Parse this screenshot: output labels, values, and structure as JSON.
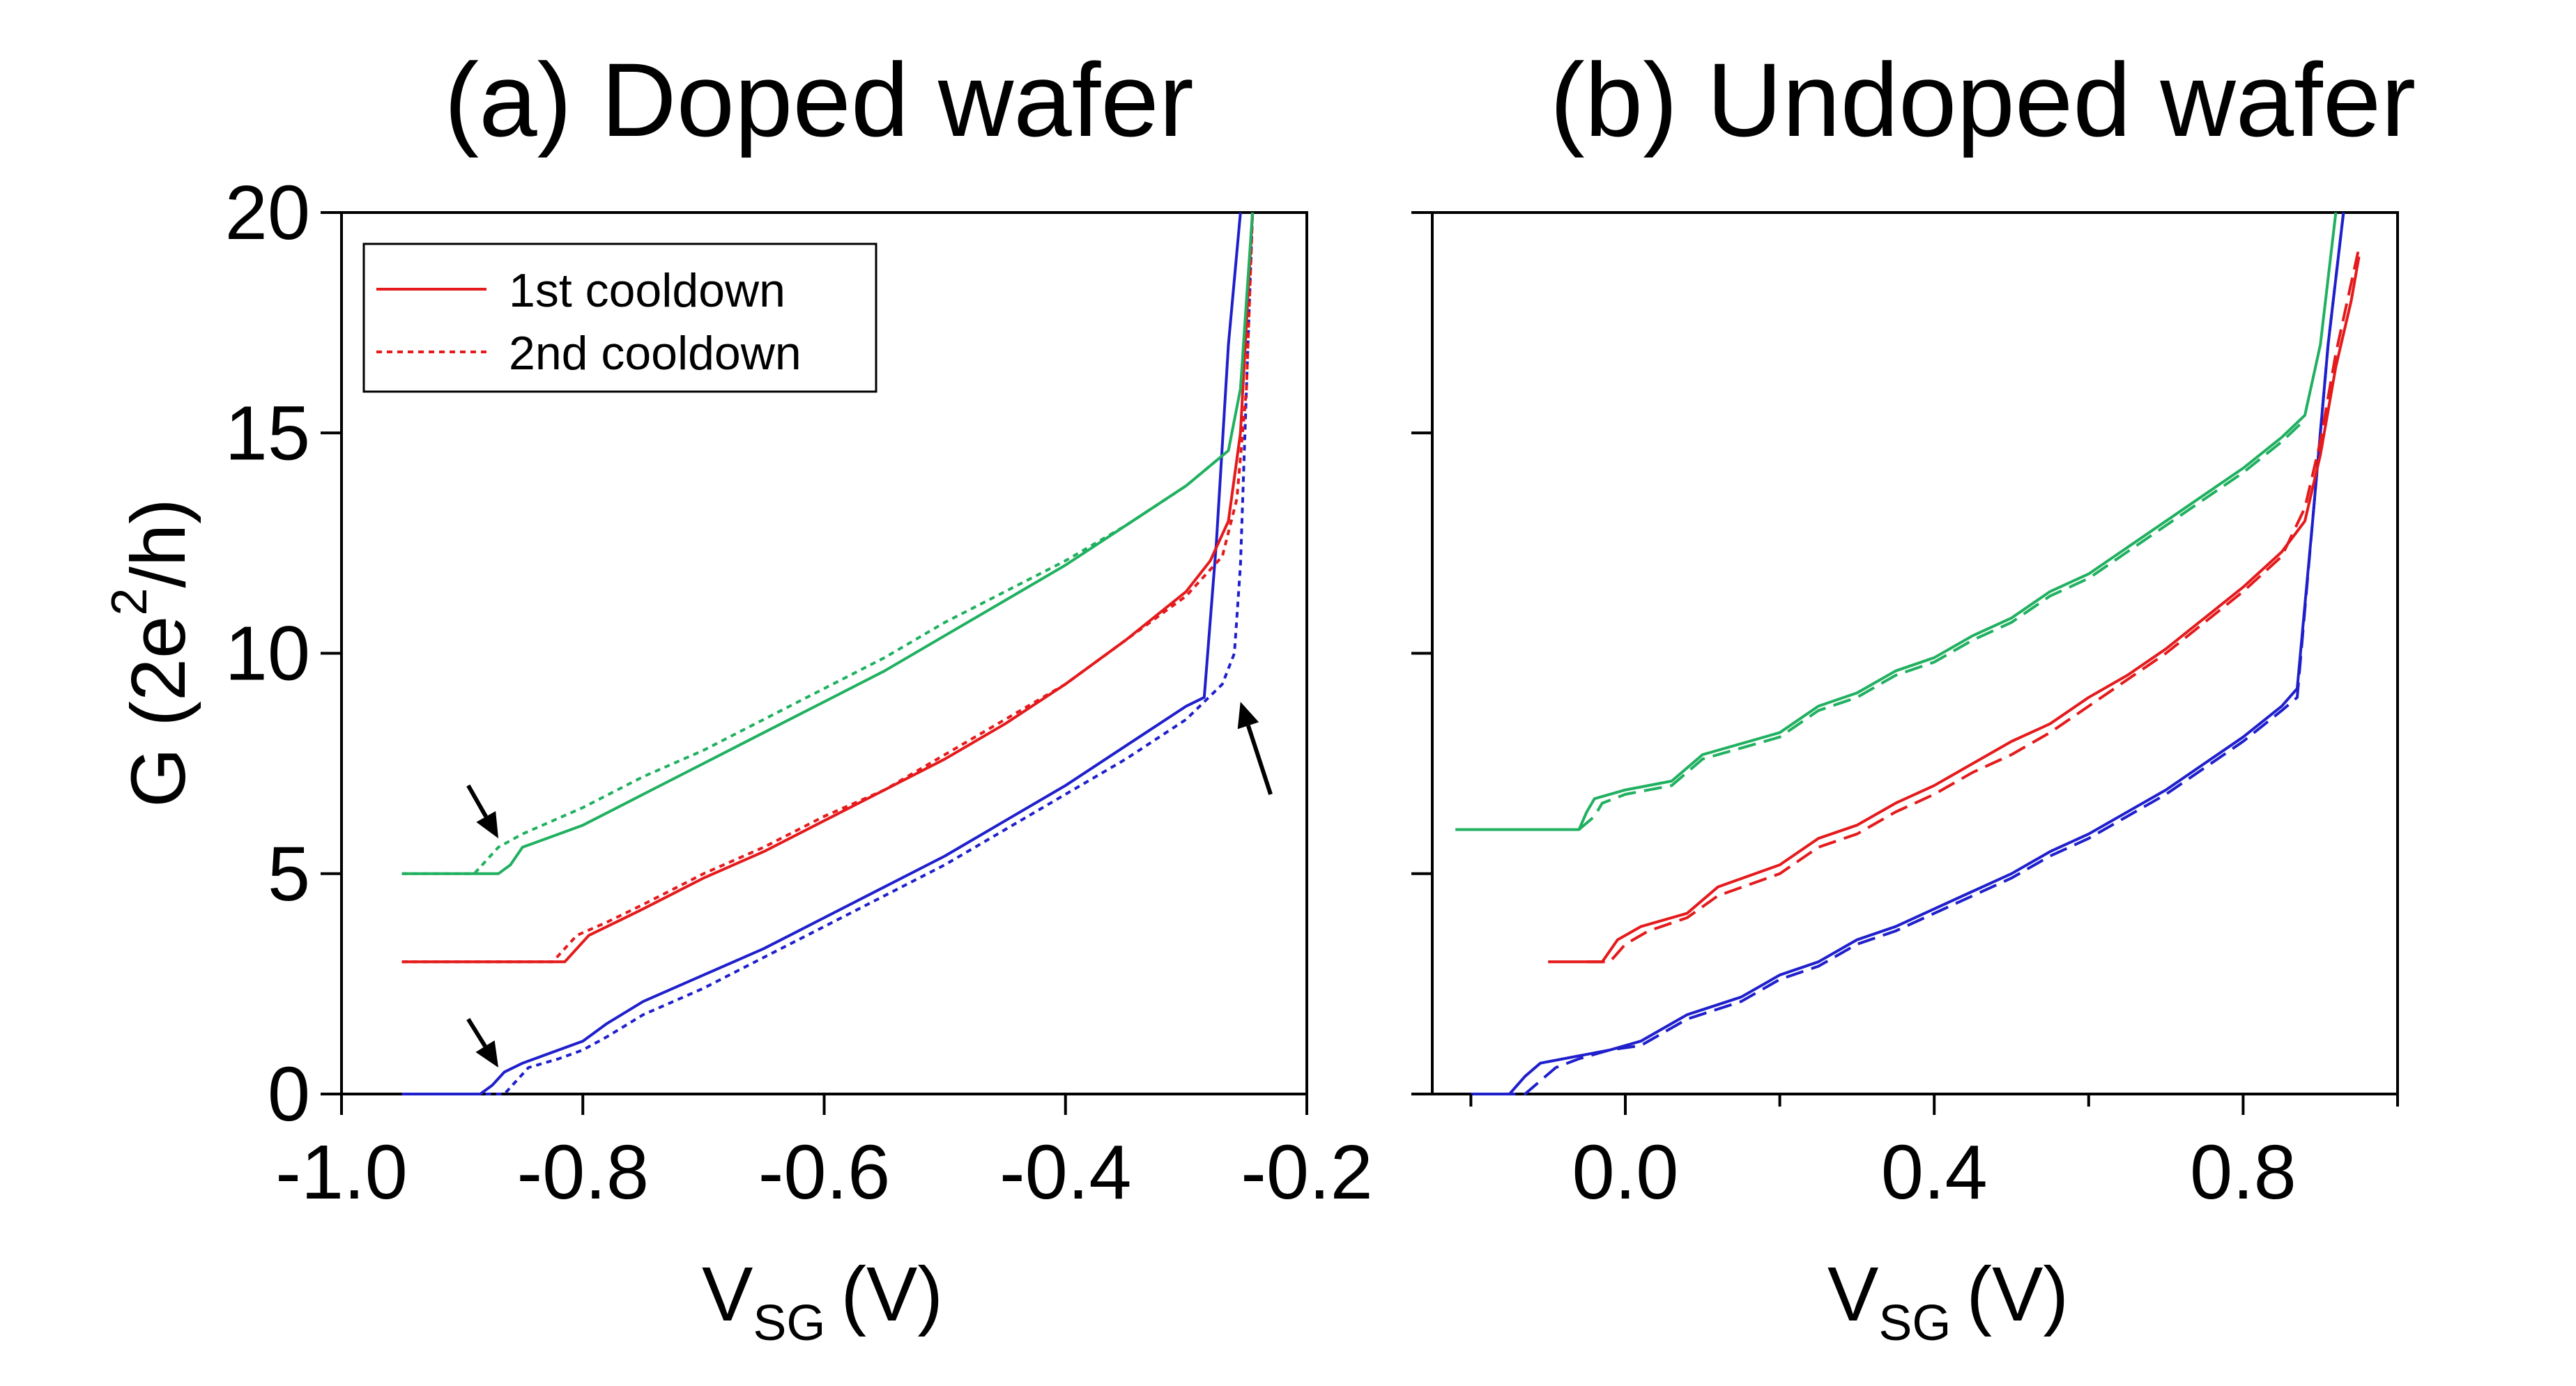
{
  "chart_data": [
    {
      "type": "line",
      "panel": "a",
      "title": "(a) Doped wafer",
      "xlabel": "V",
      "xlabel_sub": "SG",
      "xlabel_unit": "(V)",
      "ylabel": "G (2e",
      "ylabel_sup": "2",
      "ylabel_end": "/h)",
      "xlim": [
        -1.0,
        -0.2
      ],
      "ylim": [
        0,
        20
      ],
      "xticks": [
        -1.0,
        -0.8,
        -0.6,
        -0.4,
        -0.2
      ],
      "xtick_labels": [
        "-1.0",
        "-0.8",
        "-0.6",
        "-0.4",
        "-0.2"
      ],
      "yticks": [
        0,
        5,
        10,
        15,
        20
      ],
      "ytick_labels": [
        "0",
        "5",
        "10",
        "15",
        "20"
      ],
      "legend": {
        "placement": "top-left",
        "entries": [
          {
            "label": "1st cooldown",
            "style": "solid",
            "color": "#e41a1c"
          },
          {
            "label": "2nd cooldown",
            "style": "dotted",
            "color": "#e41a1c"
          }
        ]
      },
      "series": [
        {
          "name": "blue 1st cooldown",
          "color": "#1f1fcc",
          "style": "solid",
          "x": [
            -0.95,
            -0.885,
            -0.875,
            -0.865,
            -0.85,
            -0.82,
            -0.8,
            -0.78,
            -0.75,
            -0.7,
            -0.65,
            -0.6,
            -0.55,
            -0.5,
            -0.45,
            -0.4,
            -0.35,
            -0.3,
            -0.285,
            -0.275,
            -0.265,
            -0.255
          ],
          "y": [
            0,
            0,
            0.2,
            0.5,
            0.7,
            1.0,
            1.2,
            1.6,
            2.1,
            2.7,
            3.3,
            4.0,
            4.7,
            5.4,
            6.2,
            7.0,
            7.9,
            8.8,
            9.0,
            12.5,
            17.0,
            20.0
          ]
        },
        {
          "name": "blue 2nd cooldown",
          "color": "#1f1fcc",
          "style": "dotted",
          "x": [
            -0.95,
            -0.865,
            -0.855,
            -0.845,
            -0.82,
            -0.8,
            -0.78,
            -0.75,
            -0.7,
            -0.65,
            -0.6,
            -0.55,
            -0.5,
            -0.45,
            -0.4,
            -0.35,
            -0.3,
            -0.27,
            -0.26,
            -0.255,
            -0.25,
            -0.245
          ],
          "y": [
            0,
            0,
            0.3,
            0.6,
            0.8,
            1.0,
            1.3,
            1.8,
            2.4,
            3.1,
            3.8,
            4.5,
            5.2,
            6.0,
            6.8,
            7.6,
            8.5,
            9.3,
            10.0,
            12.0,
            16.0,
            20.0
          ]
        },
        {
          "name": "red 1st cooldown",
          "color": "#e41a1c",
          "style": "solid",
          "x": [
            -0.95,
            -0.815,
            -0.805,
            -0.795,
            -0.78,
            -0.75,
            -0.7,
            -0.65,
            -0.6,
            -0.55,
            -0.5,
            -0.45,
            -0.4,
            -0.35,
            -0.3,
            -0.28,
            -0.265,
            -0.255,
            -0.25,
            -0.245
          ],
          "y": [
            3,
            3,
            3.3,
            3.6,
            3.8,
            4.2,
            4.9,
            5.5,
            6.2,
            6.9,
            7.6,
            8.4,
            9.3,
            10.3,
            11.4,
            12.1,
            13.0,
            15.0,
            17.5,
            20.0
          ]
        },
        {
          "name": "red 2nd cooldown",
          "color": "#e41a1c",
          "style": "dotted",
          "x": [
            -0.95,
            -0.825,
            -0.815,
            -0.805,
            -0.78,
            -0.75,
            -0.7,
            -0.65,
            -0.6,
            -0.55,
            -0.5,
            -0.45,
            -0.4,
            -0.35,
            -0.3,
            -0.27,
            -0.258,
            -0.25,
            -0.245
          ],
          "y": [
            3,
            3,
            3.3,
            3.6,
            3.9,
            4.3,
            5.0,
            5.6,
            6.3,
            6.9,
            7.7,
            8.5,
            9.3,
            10.3,
            11.3,
            12.2,
            13.5,
            16.0,
            20.0
          ]
        },
        {
          "name": "green 1st cooldown",
          "color": "#20b060",
          "style": "solid",
          "x": [
            -0.95,
            -0.87,
            -0.86,
            -0.85,
            -0.83,
            -0.8,
            -0.75,
            -0.7,
            -0.65,
            -0.6,
            -0.55,
            -0.5,
            -0.45,
            -0.4,
            -0.35,
            -0.3,
            -0.265,
            -0.255,
            -0.25,
            -0.245
          ],
          "y": [
            5,
            5,
            5.2,
            5.6,
            5.8,
            6.1,
            6.8,
            7.5,
            8.2,
            8.9,
            9.6,
            10.4,
            11.2,
            12.0,
            12.9,
            13.8,
            14.6,
            16.0,
            18.0,
            20.0
          ]
        },
        {
          "name": "green 2nd cooldown",
          "color": "#20b060",
          "style": "dotted",
          "x": [
            -0.95,
            -0.89,
            -0.88,
            -0.87,
            -0.85,
            -0.8,
            -0.75,
            -0.7,
            -0.65,
            -0.6,
            -0.55,
            -0.5,
            -0.45,
            -0.4,
            -0.35,
            -0.3,
            -0.265
          ],
          "y": [
            5,
            5,
            5.3,
            5.6,
            5.9,
            6.5,
            7.2,
            7.8,
            8.5,
            9.2,
            9.9,
            10.7,
            11.4,
            12.1,
            12.9,
            13.8,
            14.6
          ]
        }
      ],
      "annotations": [
        {
          "type": "arrow",
          "tail": [
            -0.895,
            7.0
          ],
          "head": [
            -0.87,
            5.8
          ]
        },
        {
          "type": "arrow",
          "tail": [
            -0.895,
            1.7
          ],
          "head": [
            -0.87,
            0.6
          ]
        },
        {
          "type": "arrow",
          "tail": [
            -0.23,
            6.8
          ],
          "head": [
            -0.255,
            8.9
          ]
        }
      ]
    },
    {
      "type": "line",
      "panel": "b",
      "title": "(b) Undoped wafer",
      "xlabel": "V",
      "xlabel_sub": "SG",
      "xlabel_unit": "(V)",
      "xlim": [
        -0.25,
        1.0
      ],
      "ylim": [
        0,
        20
      ],
      "xticks": [
        0.0,
        0.4,
        0.8
      ],
      "xtick_labels": [
        "0.0",
        "0.4",
        "0.8"
      ],
      "xticks_minor": [
        -0.2,
        0.2,
        0.6,
        1.0
      ],
      "yticks": [
        0,
        5,
        10,
        15,
        20
      ],
      "series": [
        {
          "name": "blue 1st cooldown",
          "color": "#1f1fcc",
          "style": "solid",
          "x": [
            -0.2,
            -0.15,
            -0.13,
            -0.11,
            -0.08,
            -0.02,
            0.02,
            0.08,
            0.15,
            0.2,
            0.25,
            0.3,
            0.35,
            0.4,
            0.45,
            0.5,
            0.55,
            0.6,
            0.65,
            0.7,
            0.75,
            0.8,
            0.85,
            0.87,
            0.89,
            0.91,
            0.93
          ],
          "y": [
            0,
            0,
            0.4,
            0.7,
            0.8,
            1.0,
            1.2,
            1.8,
            2.2,
            2.7,
            3.0,
            3.5,
            3.8,
            4.2,
            4.6,
            5.0,
            5.5,
            5.9,
            6.4,
            6.9,
            7.5,
            8.1,
            8.8,
            9.2,
            13.0,
            17.0,
            20.0
          ]
        },
        {
          "name": "blue 2nd cooldown",
          "color": "#1f1fcc",
          "style": "dashed",
          "x": [
            -0.2,
            -0.13,
            -0.11,
            -0.09,
            -0.06,
            -0.02,
            0.02,
            0.08,
            0.15,
            0.2,
            0.25,
            0.3,
            0.35,
            0.4,
            0.45,
            0.5,
            0.55,
            0.6,
            0.65,
            0.7,
            0.75,
            0.8,
            0.85,
            0.87,
            0.89,
            0.91,
            0.93
          ],
          "y": [
            0,
            0,
            0.3,
            0.6,
            0.8,
            1.0,
            1.1,
            1.7,
            2.1,
            2.6,
            2.9,
            3.4,
            3.7,
            4.1,
            4.5,
            4.9,
            5.4,
            5.8,
            6.3,
            6.8,
            7.4,
            8.0,
            8.7,
            9.0,
            13.0,
            17.0,
            20.0
          ]
        },
        {
          "name": "red 1st cooldown",
          "color": "#e41a1c",
          "style": "solid",
          "x": [
            -0.1,
            -0.03,
            -0.01,
            0.02,
            0.08,
            0.12,
            0.2,
            0.25,
            0.3,
            0.35,
            0.4,
            0.45,
            0.5,
            0.55,
            0.6,
            0.65,
            0.7,
            0.75,
            0.8,
            0.85,
            0.88,
            0.9,
            0.92,
            0.94,
            0.95
          ],
          "y": [
            3,
            3,
            3.5,
            3.8,
            4.1,
            4.7,
            5.2,
            5.8,
            6.1,
            6.6,
            7.0,
            7.5,
            8.0,
            8.4,
            9.0,
            9.5,
            10.1,
            10.8,
            11.5,
            12.3,
            13.0,
            14.5,
            16.5,
            18.0,
            19.0
          ]
        },
        {
          "name": "red 2nd cooldown",
          "color": "#e41a1c",
          "style": "dashed",
          "x": [
            -0.05,
            -0.02,
            0.0,
            0.03,
            0.08,
            0.12,
            0.2,
            0.25,
            0.3,
            0.35,
            0.4,
            0.45,
            0.5,
            0.55,
            0.6,
            0.65,
            0.7,
            0.75,
            0.8,
            0.85,
            0.88,
            0.9,
            0.92,
            0.94,
            0.95
          ],
          "y": [
            3,
            3,
            3.4,
            3.7,
            4.0,
            4.5,
            5.0,
            5.6,
            5.9,
            6.4,
            6.8,
            7.3,
            7.7,
            8.2,
            8.8,
            9.4,
            10.0,
            10.7,
            11.4,
            12.2,
            13.3,
            14.8,
            16.8,
            18.4,
            19.2
          ]
        },
        {
          "name": "green 1st cooldown",
          "color": "#20b060",
          "style": "solid",
          "x": [
            -0.22,
            -0.06,
            -0.05,
            -0.04,
            0.0,
            0.06,
            0.1,
            0.2,
            0.25,
            0.3,
            0.35,
            0.4,
            0.45,
            0.5,
            0.55,
            0.6,
            0.65,
            0.7,
            0.75,
            0.8,
            0.85,
            0.88,
            0.9,
            0.91,
            0.92
          ],
          "y": [
            6,
            6,
            6.4,
            6.7,
            6.9,
            7.1,
            7.7,
            8.2,
            8.8,
            9.1,
            9.6,
            9.9,
            10.4,
            10.8,
            11.4,
            11.8,
            12.4,
            13.0,
            13.6,
            14.2,
            14.9,
            15.4,
            17.0,
            18.5,
            20.0
          ]
        },
        {
          "name": "green 2nd cooldown",
          "color": "#20b060",
          "style": "dashed",
          "x": [
            -0.06,
            -0.04,
            -0.03,
            0.0,
            0.06,
            0.1,
            0.2,
            0.25,
            0.3,
            0.35,
            0.4,
            0.45,
            0.5,
            0.55,
            0.6,
            0.65,
            0.7,
            0.75,
            0.8,
            0.85,
            0.88
          ],
          "y": [
            6,
            6.3,
            6.6,
            6.8,
            7.0,
            7.6,
            8.1,
            8.7,
            9.0,
            9.5,
            9.8,
            10.3,
            10.7,
            11.3,
            11.7,
            12.3,
            12.9,
            13.5,
            14.1,
            14.8,
            15.3
          ]
        }
      ]
    }
  ]
}
